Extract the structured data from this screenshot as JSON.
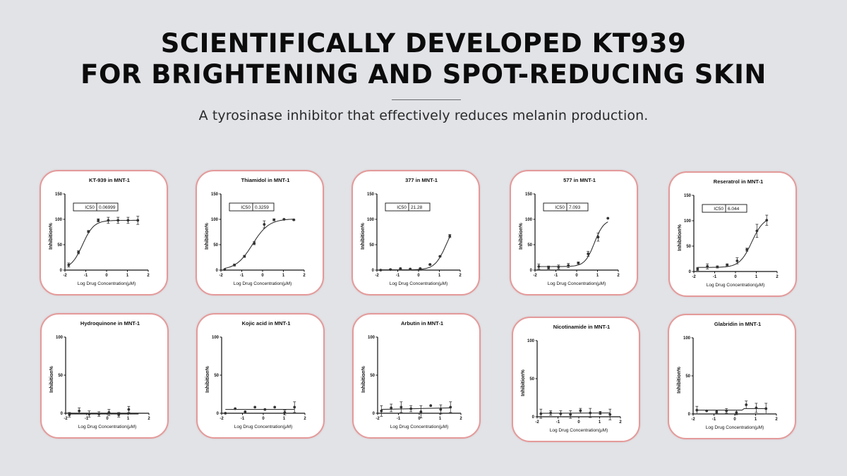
{
  "header": {
    "title_line1": "SCIENTIFICALLY DEVELOPED KT939",
    "title_line2": "FOR BRIGHTENING AND SPOT-REDUCING SKIN",
    "subtitle": "A tyrosinase inhibitor that effectively reduces melanin production."
  },
  "colors": {
    "background": "#e1e3e7",
    "card_border": "#e49a9a",
    "plot_ink": "#333333"
  },
  "chart_data": [
    {
      "type": "scatter",
      "title": "KT-939 in MNT-1",
      "xlabel": "Log Drug Concentration(μM)",
      "ylabel": "Inhibition%",
      "xlim": [
        -2,
        2
      ],
      "ylim": [
        0,
        150
      ],
      "xticks": [
        "-2",
        "-1",
        "0",
        "1",
        "2"
      ],
      "yticks": [
        "0",
        "50",
        "100",
        "150"
      ],
      "ic50_label": "IC50",
      "ic50_value": "0.06999",
      "x": [
        -1.82,
        -1.35,
        -0.87,
        -0.4,
        0.08,
        0.55,
        1.03,
        1.5
      ],
      "y": [
        10,
        35,
        76,
        98,
        98,
        98,
        98,
        98
      ],
      "err": [
        4,
        3,
        2,
        3,
        6,
        6,
        6,
        8
      ],
      "fit": {
        "kind": "sigmoid",
        "bottom": 2,
        "top": 98,
        "logec50": -1.155,
        "hill": 1.6,
        "xstart": -1.82,
        "xend": 1.5
      }
    },
    {
      "type": "scatter",
      "title": "Thiamidol in MNT-1",
      "xlabel": "Log Drug Concentration(μM)",
      "ylabel": "Inhibition%",
      "xlim": [
        -2,
        2
      ],
      "ylim": [
        0,
        150
      ],
      "xticks": [
        "-2",
        "-1",
        "0",
        "1",
        "2"
      ],
      "yticks": [
        "0",
        "50",
        "100",
        "150"
      ],
      "ic50_label": "IC50",
      "ic50_value": "0.3259",
      "x": [
        -1.82,
        -1.35,
        -0.87,
        -0.4,
        0.08,
        0.55,
        1.03,
        1.5
      ],
      "y": [
        1,
        10,
        27,
        53,
        90,
        99,
        100,
        99
      ],
      "err": [
        0,
        2,
        2,
        3,
        7,
        2,
        1,
        1
      ],
      "fit": {
        "kind": "sigmoid",
        "bottom": 0,
        "top": 101,
        "logec50": -0.487,
        "hill": 1.1,
        "xstart": -1.82,
        "xend": 1.5
      }
    },
    {
      "type": "scatter",
      "title": "377 in MNT-1",
      "xlabel": "Log Drug Concentration(μM)",
      "ylabel": "Inhibition%",
      "xlim": [
        -2,
        2
      ],
      "ylim": [
        0,
        150
      ],
      "xticks": [
        "-2",
        "-1",
        "0",
        "1",
        "2"
      ],
      "yticks": [
        "0",
        "50",
        "100",
        "150"
      ],
      "ic50_label": "IC50",
      "ic50_value": "21.28",
      "x": [
        -1.82,
        -1.35,
        -0.87,
        -0.4,
        0.08,
        0.55,
        1.03,
        1.5
      ],
      "y": [
        0,
        1,
        3,
        2,
        3,
        11,
        27,
        67
      ],
      "err": [
        0,
        1,
        1,
        1,
        1,
        1,
        1,
        3
      ],
      "fit": {
        "kind": "sigmoid",
        "bottom": 0.5,
        "top": 100,
        "logec50": 1.328,
        "hill": 1.6,
        "xstart": -1.82,
        "xend": 1.5
      }
    },
    {
      "type": "scatter",
      "title": "577 in MNT-1",
      "xlabel": "Log Drug Concentration(μM)",
      "ylabel": "Inhibition%",
      "xlim": [
        -2,
        2
      ],
      "ylim": [
        0,
        150
      ],
      "xticks": [
        "-2",
        "-1",
        "0",
        "1",
        "2"
      ],
      "yticks": [
        "0",
        "50",
        "100",
        "150"
      ],
      "ic50_label": "IC50",
      "ic50_value": "7.093",
      "x": [
        -1.82,
        -1.35,
        -0.87,
        -0.4,
        0.08,
        0.55,
        1.03,
        1.5
      ],
      "y": [
        7,
        5,
        6,
        9,
        14,
        32,
        65,
        102
      ],
      "err": [
        5,
        3,
        4,
        4,
        2,
        5,
        8,
        0
      ],
      "fit": {
        "kind": "sigmoid",
        "bottom": 7,
        "top": 100,
        "logec50": 0.851,
        "hill": 1.9,
        "xstart": -1.82,
        "xend": 1.5
      }
    },
    {
      "type": "scatter",
      "title": "Reseratrol in MNT-1",
      "xlabel": "Log Drug Concentration(μM)",
      "ylabel": "Inhibition%",
      "xlim": [
        -2,
        2
      ],
      "ylim": [
        0,
        150
      ],
      "xticks": [
        "-2",
        "-1",
        "0",
        "1",
        "2"
      ],
      "yticks": [
        "0",
        "50",
        "100",
        "150"
      ],
      "ic50_label": "IC50",
      "ic50_value": "6.044",
      "x": [
        -1.82,
        -1.35,
        -0.87,
        -0.4,
        0.08,
        0.55,
        1.03,
        1.5
      ],
      "y": [
        5,
        10,
        9,
        13,
        21,
        43,
        80,
        101
      ],
      "err": [
        3,
        5,
        2,
        2,
        6,
        3,
        13,
        10
      ],
      "fit": {
        "kind": "sigmoid",
        "bottom": 8,
        "top": 108,
        "logec50": 0.781,
        "hill": 1.5,
        "xstart": -1.82,
        "xend": 1.5
      }
    },
    {
      "type": "scatter",
      "title": "Hydroquinone in MNT-1",
      "xlabel": "Log Drug Concentration(μM)",
      "ylabel": "Inhibition%",
      "xlim": [
        -2,
        2
      ],
      "ylim": [
        0,
        100
      ],
      "xticks": [
        "-2",
        "-1",
        "0",
        "1",
        "2"
      ],
      "yticks": [
        "0",
        "50",
        "100"
      ],
      "x": [
        -1.82,
        -1.35,
        -0.87,
        -0.4,
        0.08,
        0.55,
        1.03
      ],
      "y": [
        -2,
        3,
        -1,
        -1,
        1,
        -2,
        5
      ],
      "err": [
        3,
        4,
        4,
        3,
        4,
        3,
        4
      ],
      "fit": {
        "kind": "flat",
        "values": [
          -1,
          -1
        ],
        "xstart": -1.82,
        "xend": 1.5
      }
    },
    {
      "type": "scatter",
      "title": "Kojic acid in MNT-1",
      "xlabel": "Log Drug Concentration(μM)",
      "ylabel": "Inhibition%",
      "xlim": [
        -2,
        2
      ],
      "ylim": [
        0,
        100
      ],
      "xticks": [
        "-2",
        "-1",
        "0",
        "1",
        "2"
      ],
      "yticks": [
        "0",
        "50",
        "100"
      ],
      "x": [
        -1.82,
        -1.35,
        -0.87,
        -0.4,
        0.08,
        0.55,
        1.03,
        1.5
      ],
      "y": [
        0,
        6,
        2,
        8,
        5,
        8,
        1,
        8
      ],
      "err": [
        0,
        0,
        0,
        0,
        0,
        0,
        3,
        7
      ],
      "fit": {
        "kind": "flat",
        "values": [
          5,
          5
        ],
        "xstart": -1.82,
        "xend": 1.5
      }
    },
    {
      "type": "scatter",
      "title": "Arbutin in MNT-1",
      "xlabel": "Log Drug Concentration(μM)",
      "ylabel": "Inhibition%",
      "xlim": [
        -2,
        2
      ],
      "ylim": [
        0,
        100
      ],
      "xticks": [
        "-2",
        "-1",
        "0",
        "1",
        "2"
      ],
      "yticks": [
        "0",
        "50",
        "100"
      ],
      "x": [
        -1.82,
        -1.35,
        -0.87,
        -0.4,
        0.08,
        0.55,
        1.03,
        1.5
      ],
      "y": [
        3,
        7,
        8,
        6,
        2,
        10,
        5,
        8
      ],
      "err": [
        7,
        5,
        7,
        4,
        8,
        0,
        6,
        7
      ],
      "fit": {
        "kind": "flat",
        "values": [
          5,
          7
        ],
        "xstart": -1.82,
        "xend": 1.5
      }
    },
    {
      "type": "scatter",
      "title": "Nicotinamide in MNT-1",
      "xlabel": "Log Drug Concentration(μM)",
      "ylabel": "Inhibition%",
      "xlim": [
        -2,
        2
      ],
      "ylim": [
        0,
        100
      ],
      "xticks": [
        "-2",
        "-1",
        "0",
        "1",
        "2"
      ],
      "yticks": [
        "0",
        "50",
        "100"
      ],
      "x": [
        -1.82,
        -1.35,
        -0.87,
        -0.4,
        0.08,
        0.55,
        1.03,
        1.5
      ],
      "y": [
        4,
        5,
        4,
        3,
        8,
        5,
        5,
        3
      ],
      "err": [
        6,
        3,
        4,
        5,
        3,
        6,
        2,
        7
      ],
      "fit": {
        "kind": "flat",
        "values": [
          4.5,
          5
        ],
        "xstart": -1.82,
        "xend": 1.5
      }
    },
    {
      "type": "scatter",
      "title": "Glabridin in MNT-1",
      "xlabel": "Log Drug Concentration(μM)",
      "ylabel": "Inhibition%",
      "xlim": [
        -2,
        2
      ],
      "ylim": [
        0,
        100
      ],
      "xticks": [
        "-2",
        "-1",
        "0",
        "1",
        "2"
      ],
      "yticks": [
        "0",
        "50",
        "100"
      ],
      "x": [
        -1.82,
        -1.35,
        -0.87,
        -0.4,
        0.08,
        0.55,
        1.03,
        1.5
      ],
      "y": [
        5,
        4,
        3,
        4,
        2,
        12,
        8,
        7
      ],
      "err": [
        5,
        0,
        2,
        3,
        3,
        5,
        6,
        7
      ],
      "fit": {
        "kind": "step",
        "values": [
          5,
          7
        ],
        "xbreak": 0.4,
        "xstart": -1.82,
        "xend": 1.5
      }
    }
  ]
}
